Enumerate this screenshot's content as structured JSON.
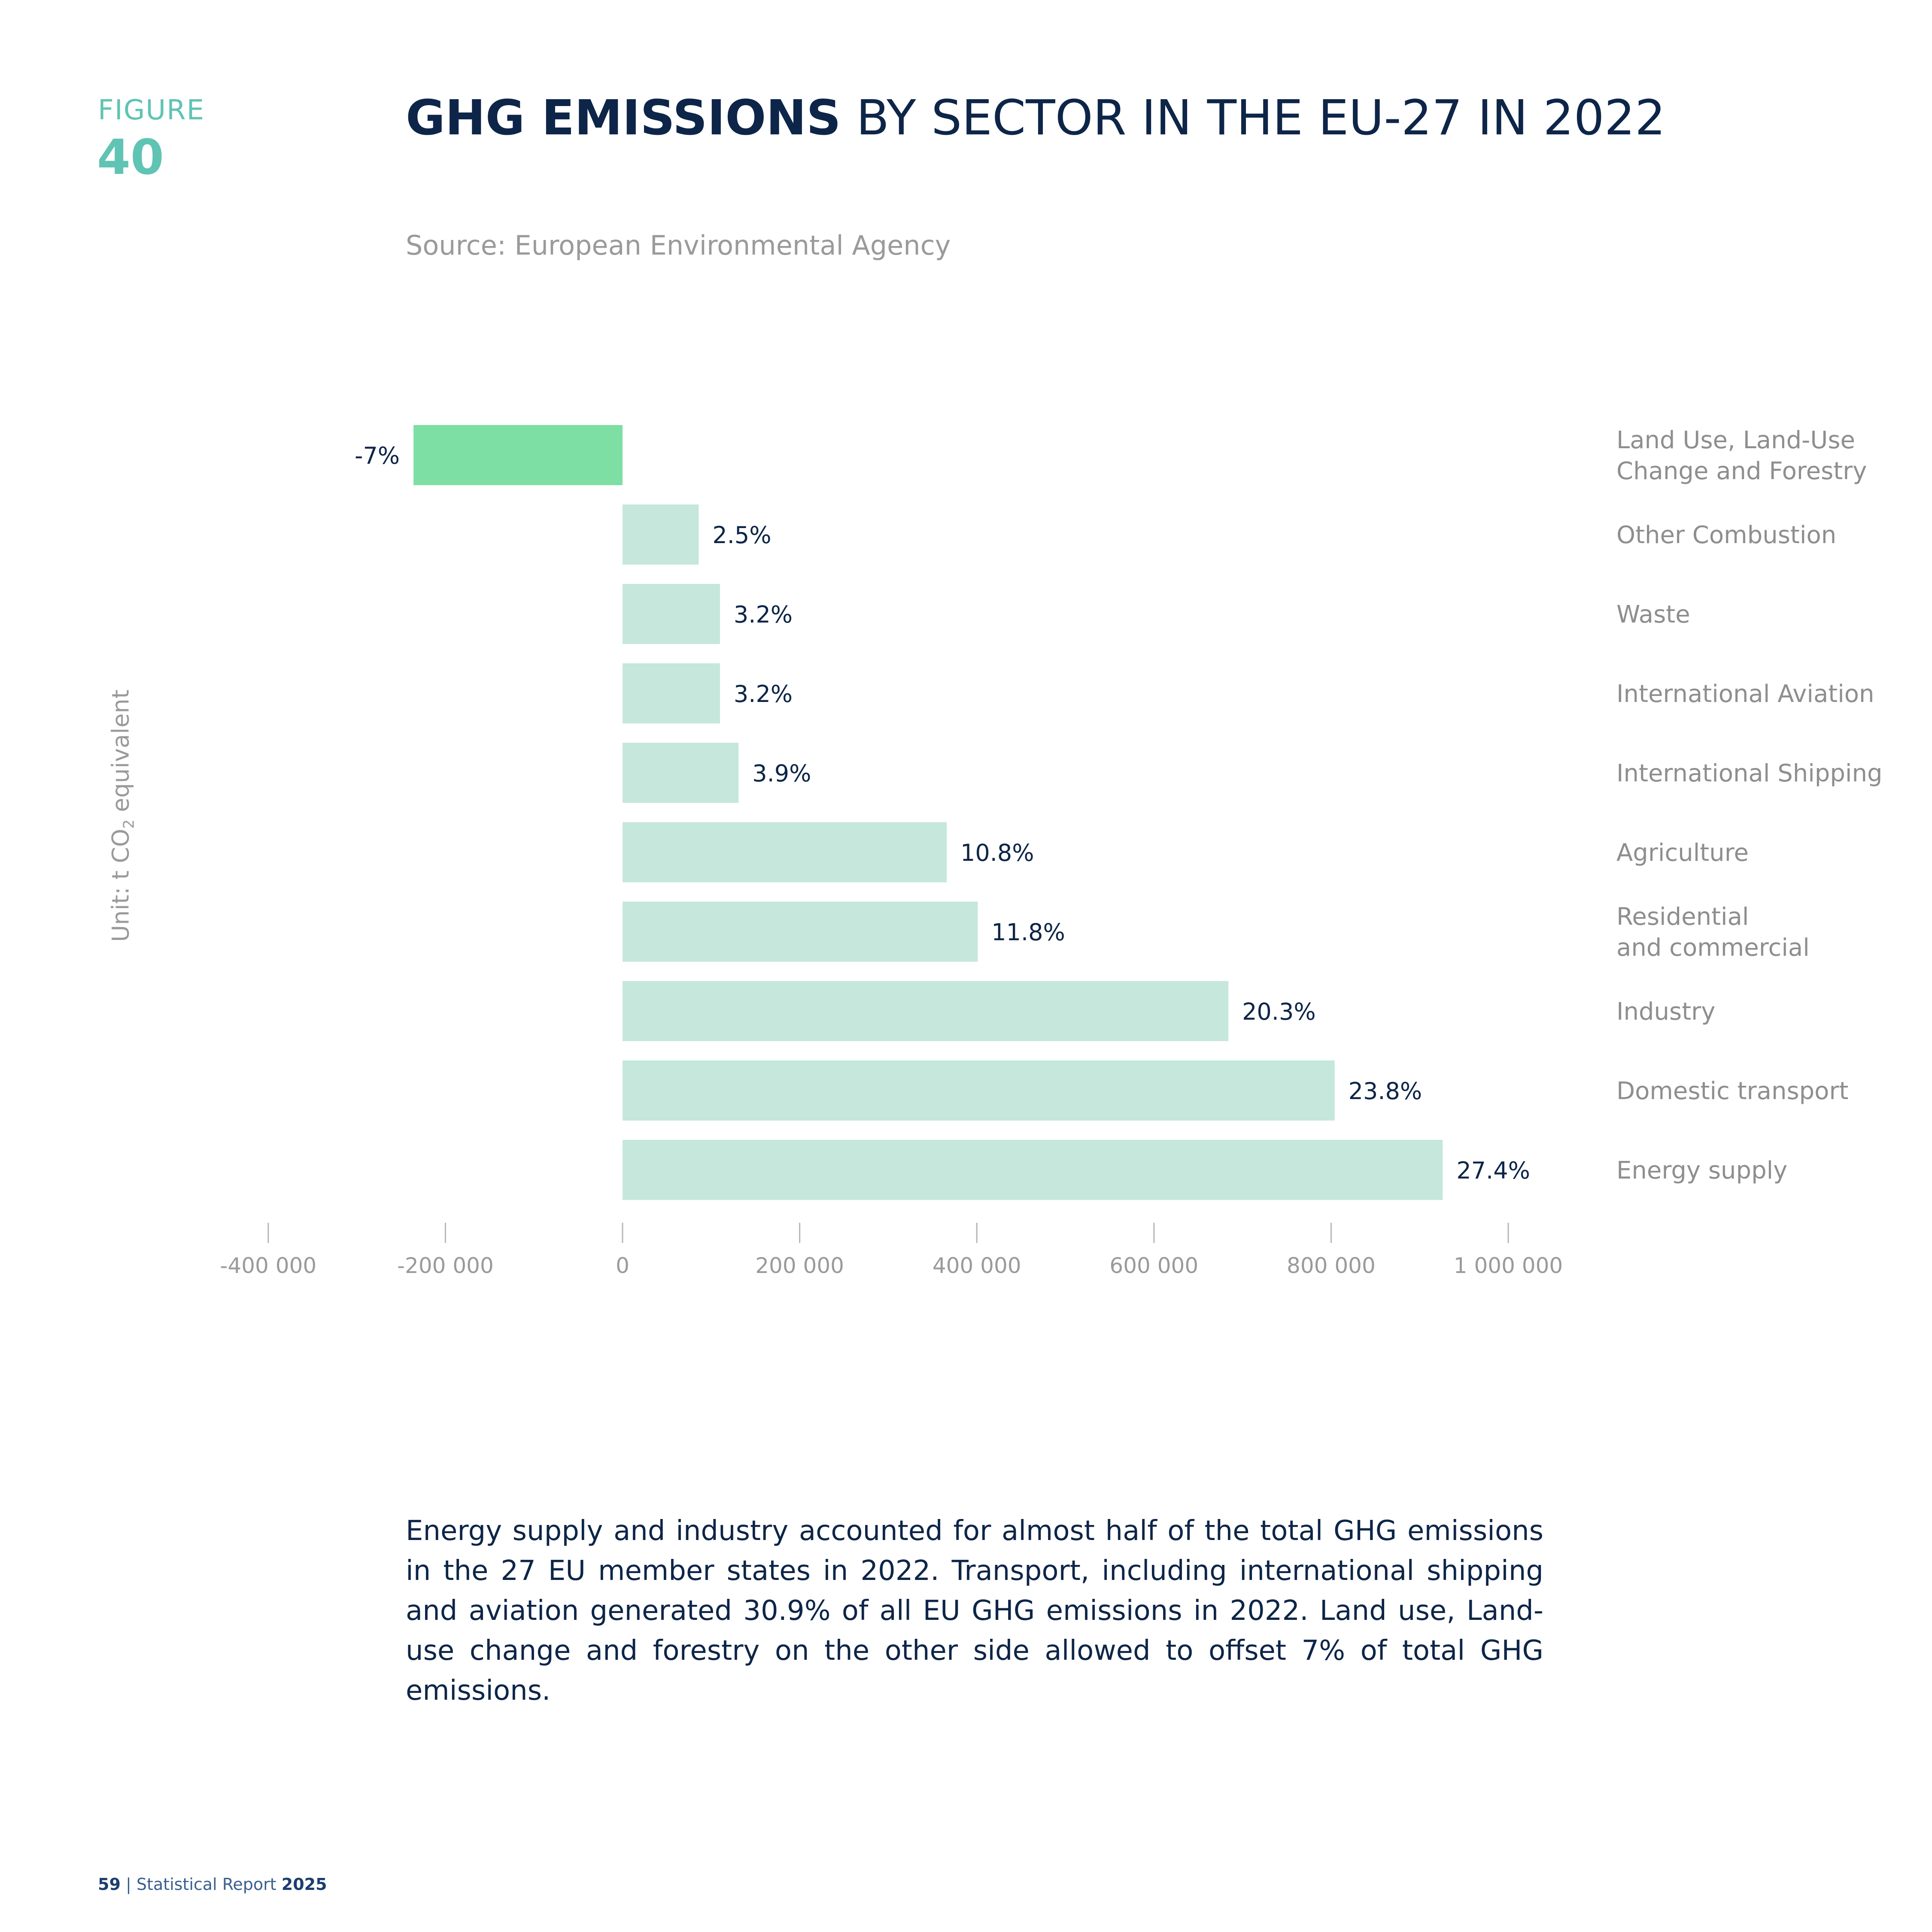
{
  "figure": {
    "label": "FIGURE",
    "number": "40"
  },
  "title": {
    "bold": "GHG EMISSIONS",
    "rest": " BY SECTOR IN THE EU-27 IN 2022"
  },
  "source": "Source: European Environmental Agency",
  "unit": {
    "prefix": "Unit: t CO",
    "subscript": "2",
    "suffix": " equivalent"
  },
  "chart_data": {
    "type": "bar",
    "orientation": "horizontal",
    "categories": [
      "Land Use, Land-Use Change and Forestry",
      "Other Combustion",
      "Waste",
      "International Aviation",
      "International Shipping",
      "Agriculture",
      "Residential and commercial",
      "Industry",
      "Domestic transport",
      "Energy supply"
    ],
    "category_lines": [
      [
        "Land Use, Land-Use",
        "Change and Forestry"
      ],
      [
        "Other Combustion"
      ],
      [
        "Waste"
      ],
      [
        "International Aviation"
      ],
      [
        "International Shipping"
      ],
      [
        "Agriculture"
      ],
      [
        "Residential",
        "and commercial"
      ],
      [
        "Industry"
      ],
      [
        "Domestic transport"
      ],
      [
        "Energy supply"
      ]
    ],
    "values": [
      -236000,
      86000,
      110000,
      110000,
      131000,
      366000,
      401000,
      684000,
      804000,
      926000
    ],
    "data_labels": [
      "-7%",
      "2.5%",
      "3.2%",
      "3.2%",
      "3.9%",
      "10.8%",
      "11.8%",
      "20.3%",
      "23.8%",
      "27.4%"
    ],
    "x_ticks": [
      -400000,
      -200000,
      0,
      200000,
      400000,
      600000,
      800000,
      1000000
    ],
    "x_tick_labels": [
      "-400 000",
      "-200 000",
      "0",
      "200 000",
      "400 000",
      "600 000",
      "800 000",
      "1 000 000"
    ],
    "xlim": [
      -400000,
      1000000
    ],
    "grid": false,
    "colors": {
      "positive": "#c5e7dc",
      "negative": "#7ddfa3",
      "label": "#0d2548",
      "category": "#8e8e8e",
      "tick": "#9a9a9a"
    }
  },
  "body_text": "Energy supply and industry accounted for almost half of the total GHG emissions in the 27 EU member states in 2022. Transport, including international shipping and aviation generated 30.9% of all EU GHG emissions in 2022. Land use, Land-use change and forestry on the other side allowed to offset 7% of total GHG emissions.",
  "footer": {
    "page": "59",
    "separator": " | ",
    "report": "Statistical Report ",
    "year": "2025"
  }
}
